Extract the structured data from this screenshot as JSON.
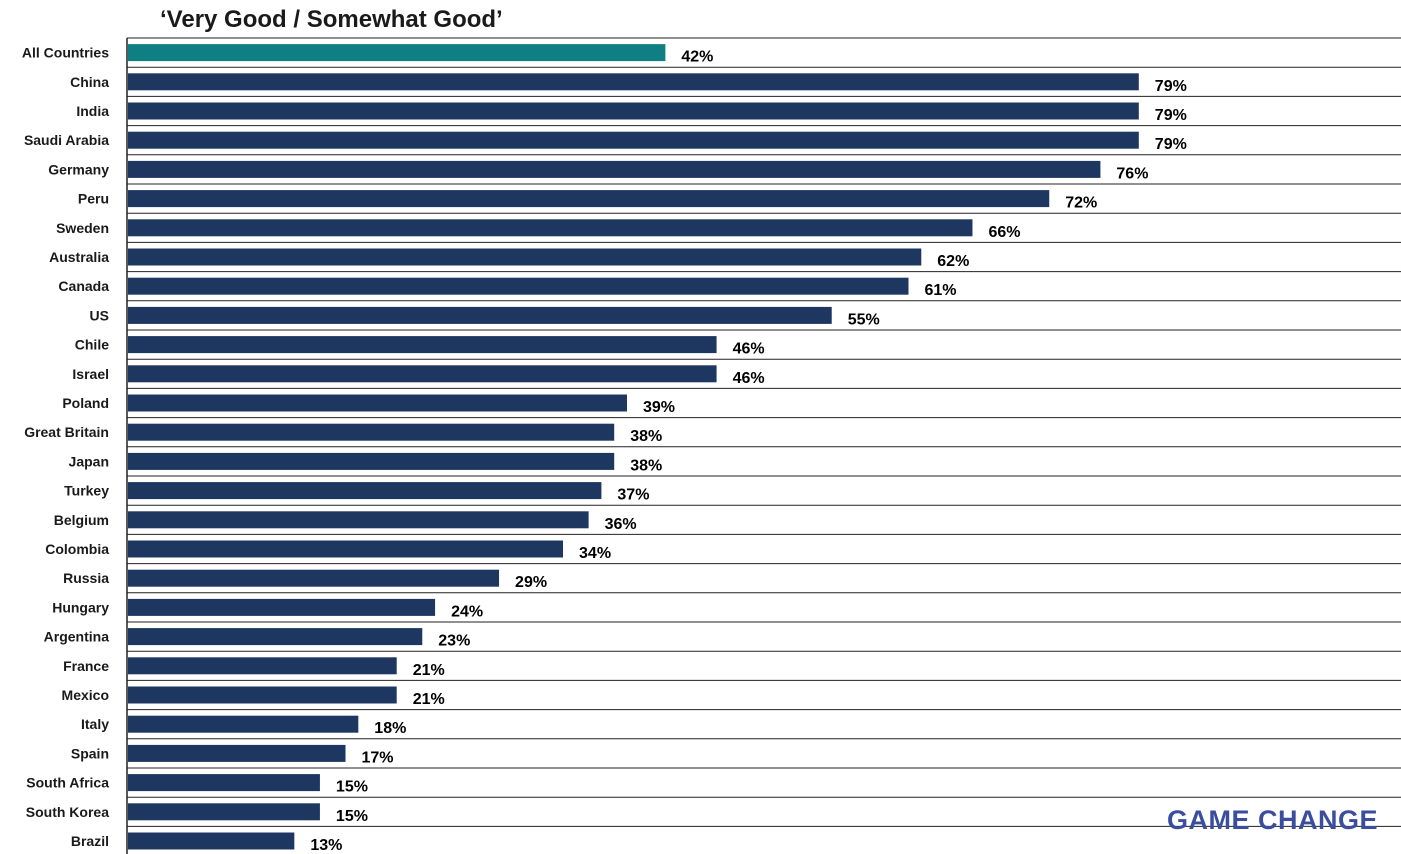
{
  "chart_data": {
    "type": "bar",
    "orientation": "horizontal",
    "title": "‘Very Good / Somewhat Good’",
    "categories": [
      "All Countries",
      "China",
      "India",
      "Saudi Arabia",
      "Germany",
      "Peru",
      "Sweden",
      "Australia",
      "Canada",
      "US",
      "Chile",
      "Israel",
      "Poland",
      "Great Britain",
      "Japan",
      "Turkey",
      "Belgium",
      "Colombia",
      "Russia",
      "Hungary",
      "Argentina",
      "France",
      "Mexico",
      "Italy",
      "Spain",
      "South Africa",
      "South Korea",
      "Brazil"
    ],
    "values": [
      42,
      79,
      79,
      79,
      76,
      72,
      66,
      62,
      61,
      55,
      46,
      46,
      39,
      38,
      38,
      37,
      36,
      34,
      29,
      24,
      23,
      21,
      21,
      18,
      17,
      15,
      15,
      13
    ],
    "labels": [
      "42%",
      "79%",
      "79%",
      "79%",
      "76%",
      "72%",
      "66%",
      "62%",
      "61%",
      "55%",
      "46%",
      "46%",
      "39%",
      "38%",
      "38%",
      "37%",
      "36%",
      "34%",
      "29%",
      "24%",
      "23%",
      "21%",
      "21%",
      "18%",
      "17%",
      "15%",
      "15%",
      "13%"
    ],
    "xlim": [
      0,
      100
    ],
    "highlight_index": 0,
    "colors": {
      "highlight": "#0f7f84",
      "bar": "#1e3761",
      "gridline": "#222222"
    }
  },
  "watermark": "GAME CHANGE"
}
